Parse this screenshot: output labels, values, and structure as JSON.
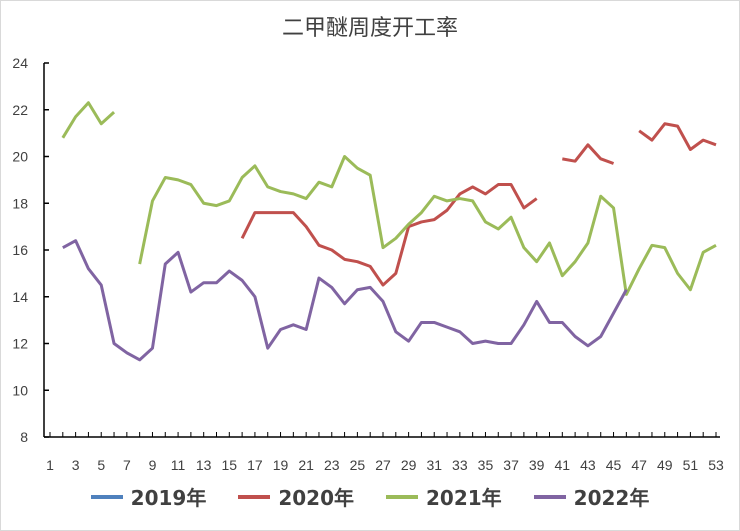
{
  "chart_data": {
    "type": "line",
    "title": "二甲醚周度开工率",
    "xlabel": "",
    "ylabel": "",
    "ylim": [
      8,
      24
    ],
    "yticks": [
      8,
      10,
      12,
      14,
      16,
      18,
      20,
      22,
      24
    ],
    "xlim": [
      1,
      53
    ],
    "xticks": [
      1,
      3,
      5,
      7,
      9,
      11,
      13,
      15,
      17,
      19,
      21,
      23,
      25,
      27,
      29,
      31,
      33,
      35,
      37,
      39,
      41,
      43,
      45,
      47,
      49,
      51,
      53
    ],
    "grid": false,
    "legend_position": "bottom",
    "series": [
      {
        "name": "2019年",
        "color": "#4f81bd",
        "values": []
      },
      {
        "name": "2020年",
        "color": "#c0504d",
        "values": [
          null,
          null,
          null,
          null,
          null,
          null,
          null,
          null,
          null,
          null,
          null,
          null,
          null,
          null,
          null,
          16.5,
          17.6,
          17.6,
          17.6,
          17.6,
          17.0,
          16.2,
          16.0,
          15.6,
          15.5,
          15.3,
          14.5,
          15.0,
          17.0,
          17.2,
          17.3,
          17.7,
          18.4,
          18.7,
          18.4,
          18.8,
          18.8,
          17.8,
          18.2,
          null,
          19.9,
          19.8,
          20.5,
          19.9,
          19.7,
          null,
          21.1,
          20.7,
          21.4,
          21.3,
          20.3,
          20.7,
          20.5
        ]
      },
      {
        "name": "2021年",
        "color": "#9bbb59",
        "values": [
          null,
          20.8,
          21.7,
          22.3,
          21.4,
          21.9,
          null,
          15.4,
          18.1,
          19.1,
          19.0,
          18.8,
          18.0,
          17.9,
          18.1,
          19.1,
          19.6,
          18.7,
          18.5,
          18.4,
          18.2,
          18.9,
          18.7,
          20.0,
          19.5,
          19.2,
          16.1,
          16.5,
          17.1,
          17.6,
          18.3,
          18.1,
          18.2,
          18.1,
          17.2,
          16.9,
          17.4,
          16.1,
          15.5,
          16.3,
          14.9,
          15.5,
          16.3,
          18.3,
          17.8,
          14.1,
          15.2,
          16.2,
          16.1,
          15.0,
          14.3,
          15.9,
          16.2
        ]
      },
      {
        "name": "2022年",
        "color": "#8064a2",
        "values": [
          null,
          16.1,
          16.4,
          15.2,
          14.5,
          12.0,
          11.6,
          11.3,
          11.8,
          15.4,
          15.9,
          14.2,
          14.6,
          14.6,
          15.1,
          14.7,
          14.0,
          11.8,
          12.6,
          12.8,
          12.6,
          14.8,
          14.4,
          13.7,
          14.3,
          14.4,
          13.8,
          12.5,
          12.1,
          12.9,
          12.9,
          12.7,
          12.5,
          12.0,
          12.1,
          12.0,
          12.0,
          12.8,
          13.8,
          12.9,
          12.9,
          12.3,
          11.9,
          12.3,
          13.3,
          14.3
        ]
      }
    ]
  }
}
